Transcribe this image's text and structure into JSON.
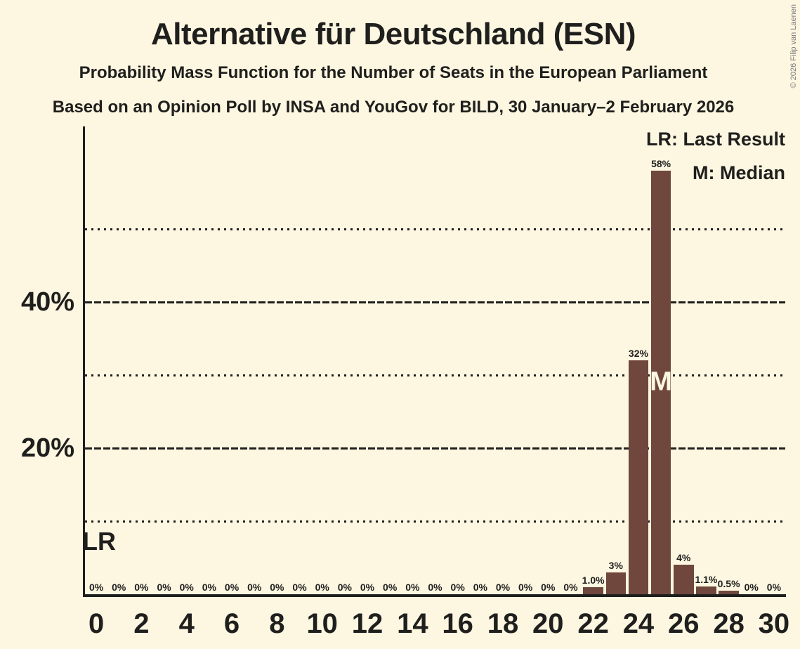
{
  "title": "Alternative für Deutschland (ESN)",
  "subtitle1": "Probability Mass Function for the Number of Seats in the European Parliament",
  "subtitle2": "Based on an Opinion Poll by INSA and YouGov for BILD, 30 January–2 February 2026",
  "copyright": "© 2026 Filip van Laenen",
  "legend": {
    "lr": "LR: Last Result",
    "m": "M: Median"
  },
  "colors": {
    "background": "#fdf6e1",
    "bar": "#6f473c",
    "text": "#1f1f1d",
    "copyright": "#7a7a7a",
    "median_letter": "#fdf6e1"
  },
  "annotations": {
    "lr_label": "LR",
    "lr_seat": 0,
    "median_label": "M",
    "median_seat": 25
  },
  "chart_data": {
    "type": "bar",
    "title": "Alternative für Deutschland (ESN)",
    "xlabel": "",
    "ylabel": "",
    "x": [
      0,
      1,
      2,
      3,
      4,
      5,
      6,
      7,
      8,
      9,
      10,
      11,
      12,
      13,
      14,
      15,
      16,
      17,
      18,
      19,
      20,
      21,
      22,
      23,
      24,
      25,
      26,
      27,
      28,
      29,
      30
    ],
    "values": [
      0,
      0,
      0,
      0,
      0,
      0,
      0,
      0,
      0,
      0,
      0,
      0,
      0,
      0,
      0,
      0,
      0,
      0,
      0,
      0,
      0,
      0,
      1.0,
      3,
      32,
      58,
      4,
      1.1,
      0.5,
      0,
      0
    ],
    "bar_labels": [
      "0%",
      "0%",
      "0%",
      "0%",
      "0%",
      "0%",
      "0%",
      "0%",
      "0%",
      "0%",
      "0%",
      "0%",
      "0%",
      "0%",
      "0%",
      "0%",
      "0%",
      "0%",
      "0%",
      "0%",
      "0%",
      "0%",
      "1.0%",
      "3%",
      "32%",
      "58%",
      "4%",
      "1.1%",
      "0.5%",
      "0%",
      "0%"
    ],
    "xtick_labels": [
      "0",
      "2",
      "4",
      "6",
      "8",
      "10",
      "12",
      "14",
      "16",
      "18",
      "20",
      "22",
      "24",
      "26",
      "28",
      "30"
    ],
    "xtick_values": [
      0,
      2,
      4,
      6,
      8,
      10,
      12,
      14,
      16,
      18,
      20,
      22,
      24,
      26,
      28,
      30
    ],
    "yticks": [
      {
        "value": 20,
        "label": "20%"
      },
      {
        "value": 40,
        "label": "40%"
      }
    ],
    "gridlines_dotted": [
      10,
      30,
      50
    ],
    "gridlines_dashed": [
      20,
      40
    ],
    "ylim": [
      0,
      64
    ],
    "legend_position": "top-right",
    "grid": true
  }
}
